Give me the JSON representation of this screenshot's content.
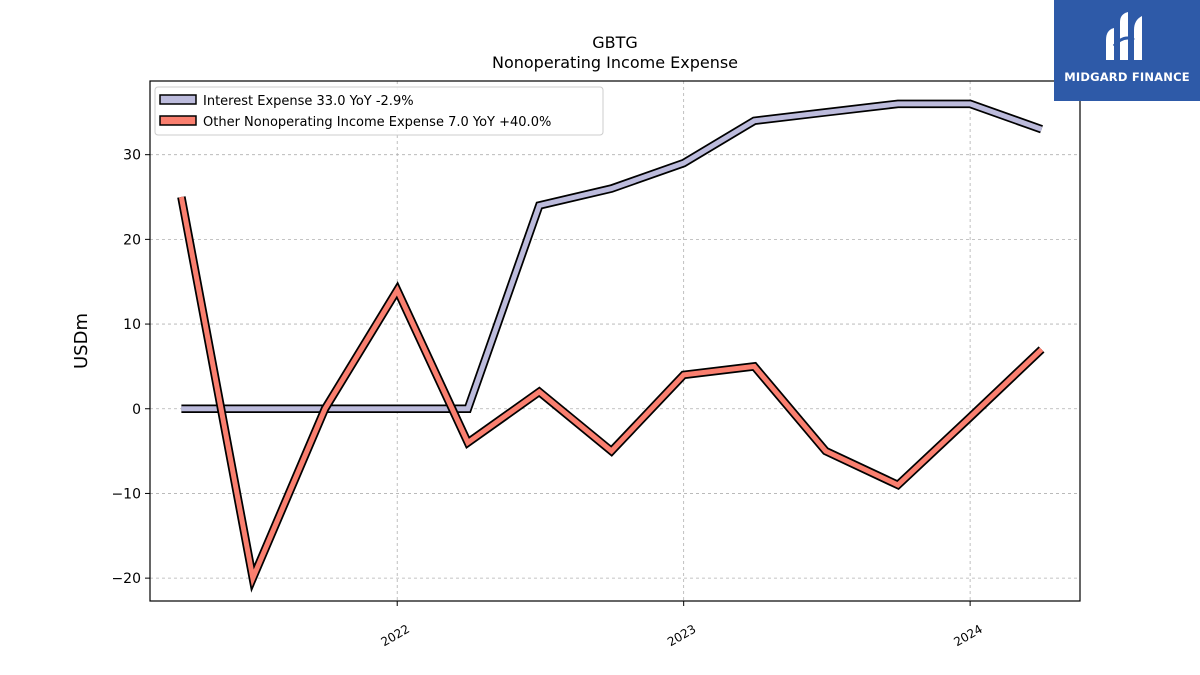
{
  "chart_data": {
    "type": "line",
    "title": "GBTG",
    "subtitle": "Nonoperating Income Expense",
    "ylabel": "USDm",
    "xlabel": "",
    "x": [
      "2021-04-01",
      "2021-07-01",
      "2021-10-01",
      "2022-01-01",
      "2022-04-01",
      "2022-07-01",
      "2022-10-01",
      "2023-01-01",
      "2023-04-01",
      "2023-07-01",
      "2023-10-01",
      "2024-01-01",
      "2024-04-01"
    ],
    "x_ticks": [
      "2022",
      "2023",
      "2024"
    ],
    "y_ticks": [
      "30",
      "20",
      "10",
      "0",
      "−10",
      "−20"
    ],
    "y_tick_values": [
      30,
      20,
      10,
      0,
      -10,
      -20
    ],
    "ylim": [
      -22.7,
      38.7
    ],
    "grid": true,
    "legend_position": "top-left",
    "series": [
      {
        "name": "Interest Expense",
        "legend": "Interest Expense  33.0 YoY -2.9%",
        "color": "#bcbbdc",
        "values": [
          0,
          0,
          0,
          0,
          0,
          24,
          26,
          29,
          34,
          35,
          36,
          36,
          33
        ]
      },
      {
        "name": "Other Nonoperating Income Expense",
        "legend": "Other Nonoperating Income Expense  7.0 YoY +40.0%",
        "color": "#fa7f6f",
        "values": [
          25,
          -20,
          0,
          14,
          -4,
          2,
          -5,
          4,
          5,
          -5,
          -9,
          -1,
          7
        ]
      }
    ]
  },
  "logo": {
    "text": "MIDGARD FINANCE"
  }
}
